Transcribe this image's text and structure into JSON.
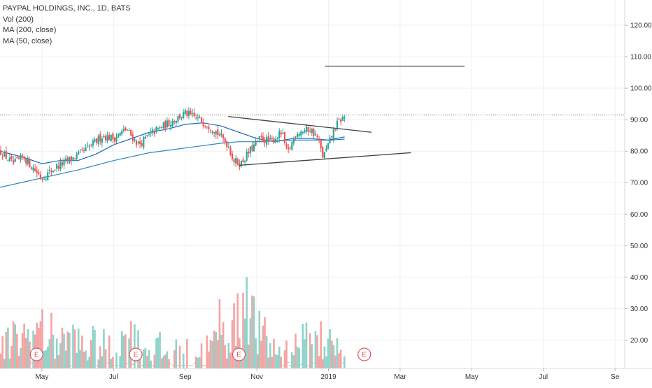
{
  "legend": {
    "title": "PAYPAL HOLDINGS, INC., 1D, BATS",
    "vol": "Vol (200)",
    "ma200": "MA (200, close)",
    "ma50": "MA (50, close)"
  },
  "colors": {
    "up": "#26a69a",
    "down": "#ef5350",
    "vol_up": "#8fd3c9",
    "vol_down": "#f5a3a3",
    "ma50": "#1565c0",
    "ma200": "#2e86c1",
    "trendline": "#424242",
    "earnings": "#e0525f",
    "grid": "#eef0f3"
  },
  "chart_data": {
    "type": "candlestick",
    "y_range": [
      11,
      128
    ],
    "y_ticks": [
      "120.00",
      "110.00",
      "100.00",
      "90.00",
      "80.00",
      "70.00",
      "60.00",
      "50.00",
      "40.00",
      "30.00",
      "20.00"
    ],
    "y_tick_values": [
      120,
      110,
      100,
      90,
      80,
      70,
      60,
      50,
      40,
      30,
      20
    ],
    "x_ticks": [
      {
        "label": "May",
        "x": 0
      },
      {
        "label": "Jul",
        "x": 2
      },
      {
        "label": "Sep",
        "x": 4
      },
      {
        "label": "Nov",
        "x": 6
      },
      {
        "label": "2019",
        "x": 8
      },
      {
        "label": "Mar",
        "x": 10
      },
      {
        "label": "May",
        "x": 12
      },
      {
        "label": "Jul",
        "x": 14
      },
      {
        "label": "Se",
        "x": 16
      }
    ],
    "x_range": [
      -1.17,
      16.27
    ],
    "price_path": [
      [
        -1.17,
        80
      ],
      [
        -0.8,
        76
      ],
      [
        -0.5,
        78
      ],
      [
        0.0,
        71.5
      ],
      [
        0.4,
        75
      ],
      [
        0.9,
        78
      ],
      [
        1.3,
        81
      ],
      [
        1.7,
        85
      ],
      [
        2.0,
        84
      ],
      [
        2.35,
        87
      ],
      [
        2.7,
        82
      ],
      [
        3.1,
        86
      ],
      [
        3.55,
        89
      ],
      [
        4.0,
        92
      ],
      [
        4.4,
        90
      ],
      [
        4.8,
        87
      ],
      [
        5.2,
        82
      ],
      [
        5.35,
        77
      ],
      [
        5.55,
        76
      ],
      [
        5.8,
        80
      ],
      [
        6.1,
        84
      ],
      [
        6.4,
        83
      ],
      [
        6.7,
        86
      ],
      [
        6.85,
        79
      ],
      [
        7.1,
        86
      ],
      [
        7.5,
        87
      ],
      [
        7.7,
        84
      ],
      [
        7.85,
        78
      ],
      [
        8.0,
        82
      ],
      [
        8.2,
        88
      ],
      [
        8.35,
        90
      ],
      [
        8.45,
        91
      ]
    ],
    "ma50": [
      [
        -1.17,
        80
      ],
      [
        -0.5,
        78
      ],
      [
        0.0,
        76
      ],
      [
        0.5,
        77
      ],
      [
        1.0,
        77
      ],
      [
        1.5,
        79
      ],
      [
        2.0,
        82
      ],
      [
        2.5,
        84
      ],
      [
        3.0,
        86
      ],
      [
        3.5,
        87
      ],
      [
        4.0,
        88.5
      ],
      [
        4.5,
        89
      ],
      [
        5.0,
        88
      ],
      [
        5.5,
        86
      ],
      [
        6.0,
        84
      ],
      [
        6.5,
        83
      ],
      [
        7.0,
        84
      ],
      [
        7.5,
        84
      ],
      [
        8.0,
        83.5
      ],
      [
        8.45,
        84.5
      ]
    ],
    "ma200": [
      [
        -1.17,
        68.5
      ],
      [
        0.0,
        71.5
      ],
      [
        1.0,
        74
      ],
      [
        2.0,
        77
      ],
      [
        3.0,
        79.5
      ],
      [
        4.0,
        81
      ],
      [
        5.0,
        82.5
      ],
      [
        5.5,
        83
      ],
      [
        6.0,
        83
      ],
      [
        7.0,
        83.5
      ],
      [
        8.0,
        83.5
      ],
      [
        8.45,
        83.8
      ]
    ],
    "trendlines": [
      [
        [
          5.2,
          91
        ],
        [
          9.2,
          86
        ]
      ],
      [
        [
          5.5,
          75.5
        ],
        [
          10.3,
          79.5
        ]
      ],
      [
        [
          7.9,
          107
        ],
        [
          11.8,
          107
        ]
      ]
    ],
    "last_price_line": 91.5,
    "volume_path": [
      [
        -1.17,
        18
      ],
      [
        -0.6,
        22
      ],
      [
        0.0,
        24
      ],
      [
        0.5,
        21
      ],
      [
        1.0,
        20
      ],
      [
        1.5,
        19
      ],
      [
        2.0,
        17
      ],
      [
        2.4,
        23
      ],
      [
        2.7,
        19
      ],
      [
        3.2,
        18
      ],
      [
        3.6,
        16
      ],
      [
        4.0,
        16
      ],
      [
        4.5,
        17
      ],
      [
        5.0,
        21
      ],
      [
        5.3,
        26
      ],
      [
        5.6,
        28
      ],
      [
        5.8,
        34
      ],
      [
        6.0,
        24
      ],
      [
        6.4,
        19
      ],
      [
        6.8,
        17
      ],
      [
        7.2,
        20
      ],
      [
        7.6,
        20
      ],
      [
        7.9,
        21
      ],
      [
        8.2,
        18
      ],
      [
        8.45,
        17
      ]
    ],
    "volume_spikes": [
      [
        5.7,
        40
      ],
      [
        4.95,
        33
      ],
      [
        5.6,
        35
      ],
      [
        7.8,
        26
      ],
      [
        2.6,
        25
      ],
      [
        -0.05,
        26
      ]
    ],
    "earnings_markers": [
      {
        "label": "E",
        "x": -0.15
      },
      {
        "label": "E",
        "x": 2.62
      },
      {
        "label": "E",
        "x": 5.5
      },
      {
        "label": "E",
        "x": 9.0
      }
    ]
  }
}
